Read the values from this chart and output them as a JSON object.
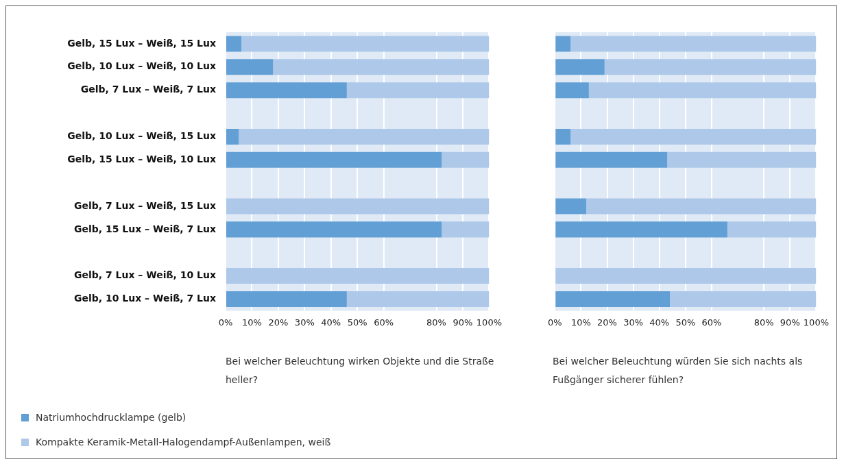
{
  "chart_data": [
    {
      "type": "bar",
      "orientation": "horizontal",
      "stacked": true,
      "grid": "x",
      "legend": "bottom left",
      "categories": [
        "Gelb, 15 Lux – Weiß, 15 Lux",
        "Gelb, 10 Lux – Weiß, 10 Lux",
        "Gelb, 7 Lux – Weiß, 7 Lux",
        null,
        "Gelb, 10 Lux – Weiß, 15 Lux",
        "Gelb, 15 Lux – Weiß, 10 Lux",
        null,
        "Gelb, 7 Lux – Weiß, 15 Lux",
        "Gelb, 15 Lux – Weiß, 7 Lux",
        null,
        "Gelb, 7 Lux – Weiß, 10 Lux",
        "Gelb, 10 Lux – Weiß, 7 Lux"
      ],
      "series": [
        {
          "name": "Natriumhochdrucklampe (gelb)",
          "color": "#629fd5",
          "values": [
            6,
            18,
            46,
            null,
            5,
            82,
            null,
            0,
            82,
            null,
            0,
            46
          ]
        },
        {
          "name": "Kompakte Keramik-Metall-Halogendampf-Außenlampen, weiß",
          "color": "#adc8e8",
          "values": [
            94,
            82,
            54,
            null,
            95,
            18,
            null,
            100,
            18,
            null,
            100,
            54
          ]
        }
      ],
      "xlim": [
        0,
        100
      ],
      "xticks": [
        {
          "value": 0,
          "label": "0%"
        },
        {
          "value": 10,
          "label": "10%"
        },
        {
          "value": 20,
          "label": "20%"
        },
        {
          "value": 30,
          "label": "30%"
        },
        {
          "value": 40,
          "label": "40%"
        },
        {
          "value": 50,
          "label": "50%"
        },
        {
          "value": 60,
          "label": "60%"
        },
        {
          "value": 80,
          "label": "80%"
        },
        {
          "value": 90,
          "label": "90%"
        },
        {
          "value": 100,
          "label": "100%"
        }
      ],
      "xlabel": "Bei welcher Beleuchtung wirken Objekte und die Straße heller?"
    },
    {
      "type": "bar",
      "orientation": "horizontal",
      "stacked": true,
      "grid": "x",
      "categories": [
        null,
        null,
        null,
        null,
        null,
        null,
        null,
        null,
        null,
        null,
        null,
        null
      ],
      "series": [
        {
          "color": "#629fd5",
          "values": [
            6,
            19,
            13,
            null,
            6,
            43,
            null,
            12,
            66,
            null,
            0,
            44
          ]
        },
        {
          "color": "#adc8e8",
          "values": [
            94,
            81,
            87,
            null,
            94,
            57,
            null,
            88,
            34,
            null,
            100,
            56
          ]
        }
      ],
      "xlim": [
        0,
        100
      ],
      "xticks": [
        {
          "value": 0,
          "label": "0%"
        },
        {
          "value": 10,
          "label": "10%"
        },
        {
          "value": 20,
          "label": "20%"
        },
        {
          "value": 30,
          "label": "30%"
        },
        {
          "value": 40,
          "label": "40%"
        },
        {
          "value": 50,
          "label": "50%"
        },
        {
          "value": 60,
          "label": "60%"
        },
        {
          "value": 80,
          "label": "80%"
        },
        {
          "value": 90,
          "label": "90%"
        },
        {
          "value": 100,
          "label": "100%"
        }
      ],
      "xlabel": "Bei welcher Beleuchtung würden Sie sich nachts als Fußgänger sicherer fühlen?"
    }
  ]
}
